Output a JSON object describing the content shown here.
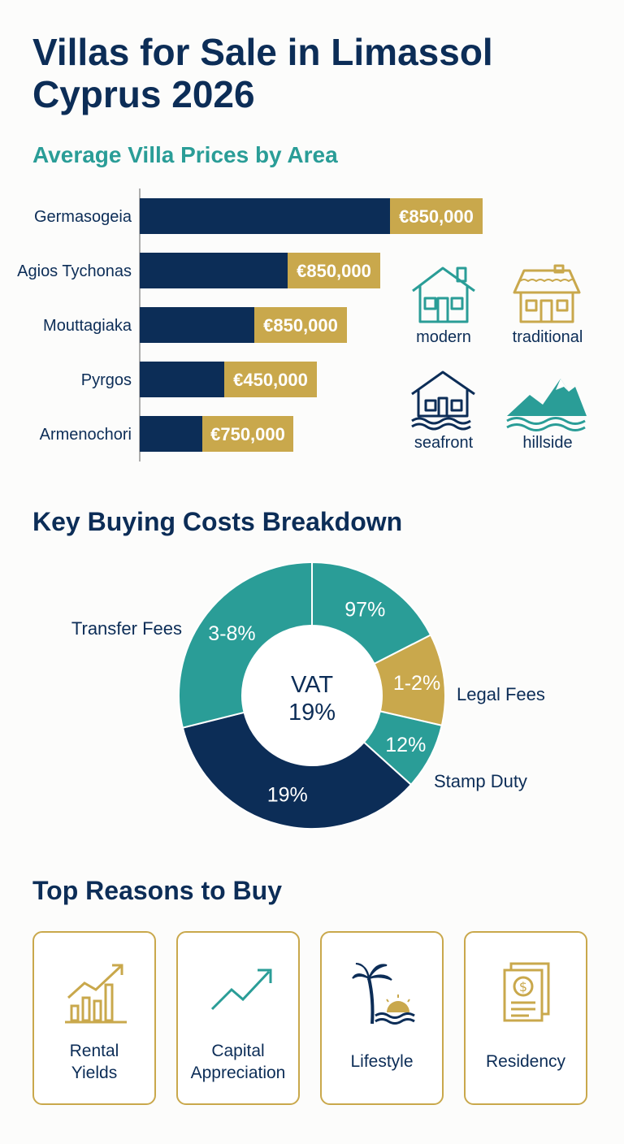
{
  "title": "Villas for Sale in Limassol Cyprus 2026",
  "colors": {
    "navy": "#0c2d57",
    "teal": "#2a9d97",
    "gold": "#c9a84c"
  },
  "chart_data": [
    {
      "type": "bar",
      "orientation": "horizontal",
      "title": "Average Villa Prices by Area",
      "categories": [
        "Germasogeia",
        "Agios Tychonas",
        "Mouttagiaka",
        "Pyrgos",
        "Armenochori"
      ],
      "values": [
        850000,
        850000,
        850000,
        450000,
        750000
      ],
      "data_labels": [
        "€850,000",
        "€850,000",
        "€850,000",
        "€450,000",
        "€750,000"
      ],
      "grid": false
    },
    {
      "type": "pie",
      "variant": "donut",
      "title": "Key Buying Costs Breakdown",
      "center_label": [
        "VAT",
        "19%"
      ],
      "slices": [
        {
          "label": "",
          "value_label": "97%",
          "color": "#2a9d97",
          "start_deg": 0,
          "end_deg": 63
        },
        {
          "label": "Legal Fees",
          "value_label": "1-2%",
          "color": "#c9a84c",
          "start_deg": 63,
          "end_deg": 103
        },
        {
          "label": "Stamp Duty",
          "value_label": "12%",
          "color": "#2a9d97",
          "start_deg": 103,
          "end_deg": 132
        },
        {
          "label": "",
          "value_label": "19%",
          "color": "#0c2d57",
          "start_deg": 132,
          "end_deg": 256
        },
        {
          "label": "Transfer Fees",
          "value_label": "3-8%",
          "color": "#2a9d97",
          "start_deg": 256,
          "end_deg": 360
        }
      ]
    }
  ],
  "villa_types": [
    {
      "label": "modern",
      "icon": "modern-house-icon"
    },
    {
      "label": "traditional",
      "icon": "traditional-house-icon"
    },
    {
      "label": "seafront",
      "icon": "seafront-house-icon"
    },
    {
      "label": "hillside",
      "icon": "mountain-icon"
    }
  ],
  "reasons": {
    "title": "Top Reasons to Buy",
    "items": [
      {
        "label": "Rental\nYields",
        "icon": "bar-growth-icon"
      },
      {
        "label": "Capital\nAppreciation",
        "icon": "trend-arrow-icon"
      },
      {
        "label": "Lifestyle",
        "icon": "palm-sunset-icon"
      },
      {
        "label": "Residency",
        "icon": "document-dollar-icon"
      }
    ]
  }
}
